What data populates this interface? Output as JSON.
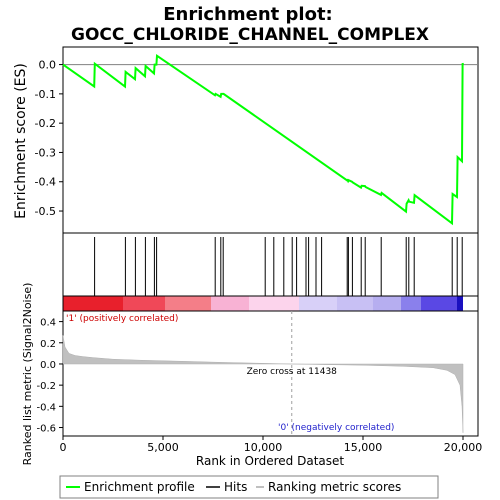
{
  "chart_data": {
    "type": "line",
    "title": "Enrichment plot:",
    "subtitle": "GOCC_CHLORIDE_CHANNEL_COMPLEX",
    "enrichment_panel": {
      "ylabel": "Enrichment score (ES)",
      "ylim": [
        -0.575,
        0.06
      ],
      "yticks": [
        0.0,
        -0.1,
        -0.2,
        -0.3,
        -0.4,
        -0.5
      ],
      "ytick_labels": [
        "0.0",
        "-0.1",
        "-0.2",
        "-0.3",
        "-0.4",
        "-0.5"
      ],
      "line_color": "#00ff00",
      "es_x": [
        0,
        1560,
        1590,
        3100,
        3130,
        3600,
        3630,
        4100,
        4130,
        4550,
        4580,
        4670,
        4700,
        7600,
        7630,
        7880,
        7910,
        8000,
        8030,
        14200,
        14230,
        14260,
        14290,
        14450,
        14480,
        14900,
        14930,
        15100,
        15130,
        15900,
        15930,
        17150,
        17180,
        17280,
        17310,
        17550,
        17580,
        19450,
        19480,
        19700,
        19730,
        19950,
        19980,
        20000
      ],
      "es_y": [
        0.0,
        -0.075,
        0.003,
        -0.075,
        -0.025,
        -0.05,
        -0.012,
        -0.04,
        -0.005,
        -0.03,
        0.0,
        0.0,
        0.03,
        -0.105,
        -0.1,
        -0.11,
        -0.1,
        -0.1,
        -0.1,
        -0.395,
        -0.394,
        -0.398,
        -0.395,
        -0.4,
        -0.402,
        -0.42,
        -0.414,
        -0.415,
        -0.418,
        -0.445,
        -0.438,
        -0.502,
        -0.475,
        -0.463,
        -0.468,
        -0.472,
        -0.446,
        -0.542,
        -0.442,
        -0.452,
        -0.316,
        -0.33,
        0.005,
        0.0
      ]
    },
    "hits_x": [
      1580,
      3120,
      3620,
      4120,
      4570,
      4680,
      7610,
      7890,
      8010,
      10110,
      10540,
      11040,
      11460,
      11680,
      12150,
      12280,
      12650,
      12930,
      14210,
      14270,
      14470,
      14910,
      15110,
      15910,
      17160,
      17290,
      17560,
      19460,
      19710,
      19960
    ],
    "ranking_bar": {
      "segments": [
        {
          "to": 3000,
          "color": "#e8202c"
        },
        {
          "to": 5100,
          "color": "#f04858"
        },
        {
          "to": 7400,
          "color": "#f47e88"
        },
        {
          "to": 9300,
          "color": "#f8b2d4"
        },
        {
          "to": 11800,
          "color": "#fcd4ec"
        },
        {
          "to": 13700,
          "color": "#d8d0f8"
        },
        {
          "to": 15500,
          "color": "#c8c0f4"
        },
        {
          "to": 16900,
          "color": "#b6aef0"
        },
        {
          "to": 17900,
          "color": "#8a80ec"
        },
        {
          "to": 19700,
          "color": "#5a48e4"
        },
        {
          "to": 20000,
          "color": "#1a10c0"
        }
      ]
    },
    "metric_panel": {
      "ylabel": "Ranked list metric (Signal2Noise)",
      "ylim": [
        -0.68,
        0.5
      ],
      "yticks": [
        0.4,
        0.2,
        0.0,
        -0.2,
        -0.4,
        -0.6
      ],
      "ytick_labels": [
        "0.4",
        "0.2",
        "0.0",
        "-0.2",
        "-0.4",
        "-0.6"
      ],
      "metric_x": [
        0,
        100,
        300,
        600,
        1000,
        1500,
        2500,
        4000,
        6000,
        8000,
        10000,
        11438,
        13000,
        15000,
        17000,
        18500,
        19200,
        19600,
        19850,
        19950,
        20000
      ],
      "metric_y": [
        0.27,
        0.16,
        0.1,
        0.08,
        0.07,
        0.06,
        0.045,
        0.035,
        0.025,
        0.015,
        0.006,
        0.0,
        -0.006,
        -0.012,
        -0.022,
        -0.035,
        -0.06,
        -0.1,
        -0.2,
        -0.4,
        -0.65
      ],
      "zero_cross_label": "Zero cross at 11438",
      "zero_cross_x": 11438,
      "pos_label": "'1' (positively correlated)",
      "neg_label": "'0' (negatively correlated)"
    },
    "xlabel": "Rank in Ordered Dataset",
    "xlim": [
      0,
      20750
    ],
    "xticks": [
      0,
      5000,
      10000,
      15000,
      20000
    ],
    "xtick_labels": [
      "0",
      "5,000",
      "10,000",
      "15,000",
      "20,000"
    ],
    "legend": {
      "placement": "bottom",
      "entries": [
        {
          "label": "Enrichment profile",
          "color": "#00ff00"
        },
        {
          "label": "Hits",
          "color": "#000000"
        },
        {
          "label": "Ranking metric scores",
          "color": "#c0c0c0"
        }
      ]
    }
  }
}
